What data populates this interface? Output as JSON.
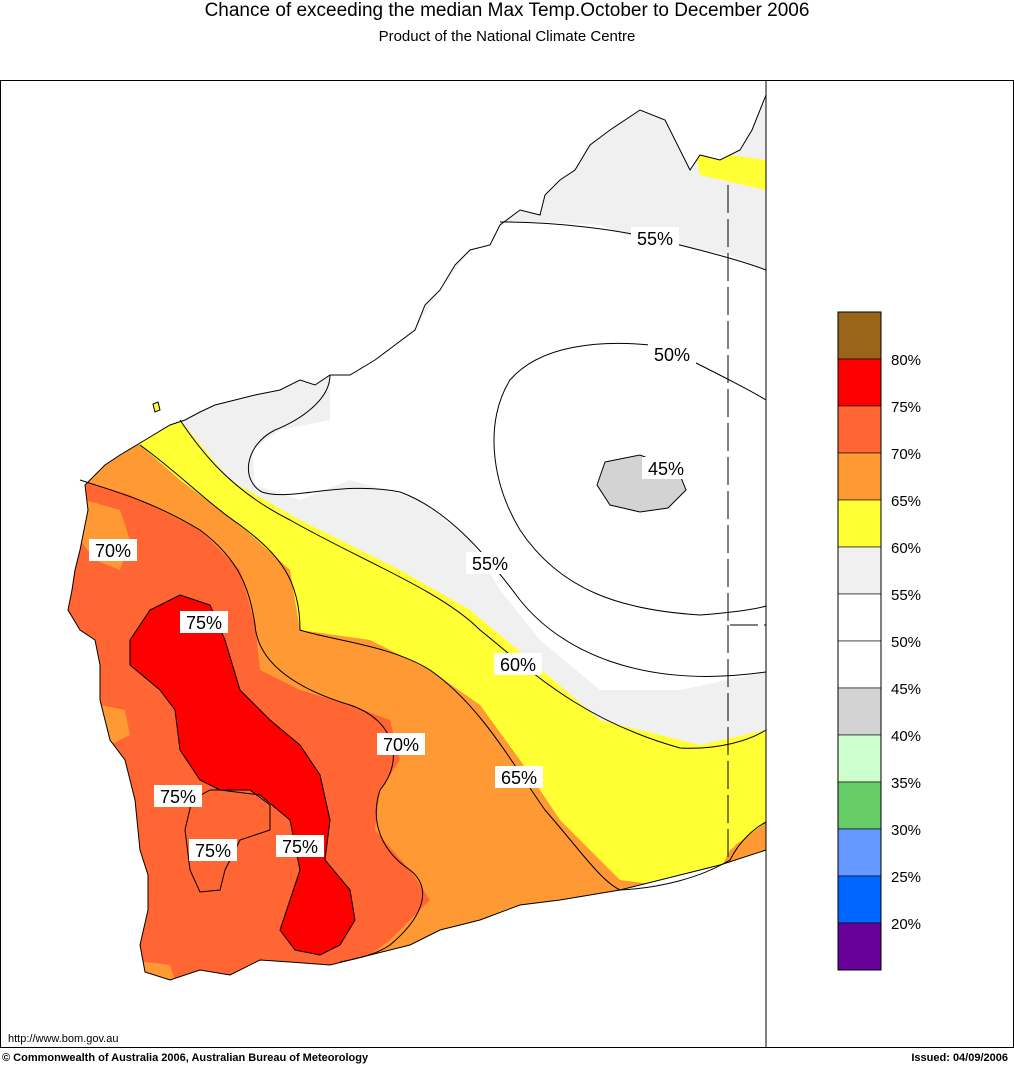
{
  "header": {
    "title": "Chance of exceeding the median Max Temp.October to December 2006",
    "subtitle": "Product of the National Climate Centre"
  },
  "map": {
    "region": "Western Australia",
    "contour_labels": [
      {
        "text": "55%",
        "name": "contour-label-55-north"
      },
      {
        "text": "50%",
        "name": "contour-label-50"
      },
      {
        "text": "45%",
        "name": "contour-label-45"
      },
      {
        "text": "55%",
        "name": "contour-label-55-central"
      },
      {
        "text": "60%",
        "name": "contour-label-60"
      },
      {
        "text": "65%",
        "name": "contour-label-65"
      },
      {
        "text": "70%",
        "name": "contour-label-70-west"
      },
      {
        "text": "70%",
        "name": "contour-label-70-central"
      },
      {
        "text": "75%",
        "name": "contour-label-75-north"
      },
      {
        "text": "75%",
        "name": "contour-label-75-west"
      },
      {
        "text": "75%",
        "name": "contour-label-75-south-west"
      },
      {
        "text": "75%",
        "name": "contour-label-75-south"
      }
    ]
  },
  "legend": {
    "swatches": [
      {
        "color": "#996619"
      },
      {
        "color": "#ff0000"
      },
      {
        "color": "#ff6633"
      },
      {
        "color": "#ff9933"
      },
      {
        "color": "#ffff33"
      },
      {
        "color": "#f0f0f0"
      },
      {
        "color": "#ffffff"
      },
      {
        "color": "#ffffff"
      },
      {
        "color": "#d3d3d3"
      },
      {
        "color": "#ccffcc"
      },
      {
        "color": "#66cc66"
      },
      {
        "color": "#6699ff"
      },
      {
        "color": "#0066ff"
      },
      {
        "color": "#660099"
      }
    ],
    "labels": [
      "80%",
      "75%",
      "70%",
      "65%",
      "60%",
      "55%",
      "50%",
      "45%",
      "40%",
      "35%",
      "30%",
      "25%",
      "20%"
    ]
  },
  "footer": {
    "url": "http://www.bom.gov.au",
    "copyright": "© Commonwealth of Australia 2006, Australian Bureau of Meteorology",
    "issued": "Issued: 04/09/2006"
  }
}
